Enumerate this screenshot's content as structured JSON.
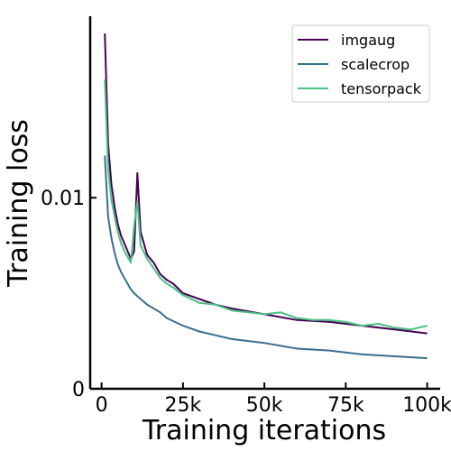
{
  "chart_data": {
    "type": "line",
    "xlabel": "Training iterations",
    "ylabel": "Training loss",
    "xlim": [
      -3500,
      104000
    ],
    "ylim": [
      0,
      0.0195
    ],
    "x_ticks": [
      0,
      25000,
      50000,
      75000,
      100000
    ],
    "x_tick_labels": [
      "0",
      "25k",
      "50k",
      "75k",
      "100k"
    ],
    "y_ticks": [
      0,
      0.01
    ],
    "y_tick_labels": [
      "0",
      "0.01"
    ],
    "grid": false,
    "legend_position": "top-right",
    "series": [
      {
        "name": "imgaug",
        "color": "#440154",
        "x": [
          1000,
          2000,
          3000,
          4000,
          5000,
          6000,
          7000,
          8000,
          9000,
          10000,
          11000,
          12000,
          14000,
          16000,
          18000,
          20000,
          22000,
          25000,
          30000,
          35000,
          40000,
          50000,
          60000,
          70000,
          80000,
          90000,
          100000
        ],
        "y": [
          0.0186,
          0.0128,
          0.0107,
          0.0095,
          0.0086,
          0.008,
          0.0076,
          0.0072,
          0.0068,
          0.0072,
          0.0113,
          0.0082,
          0.007,
          0.0066,
          0.006,
          0.0057,
          0.0055,
          0.005,
          0.0047,
          0.0044,
          0.0042,
          0.0039,
          0.0036,
          0.0035,
          0.0033,
          0.0031,
          0.0029
        ]
      },
      {
        "name": "scalecrop",
        "color": "#3b6e8f",
        "x": [
          1000,
          2000,
          3000,
          4000,
          5000,
          6000,
          7000,
          8000,
          9000,
          10000,
          12000,
          14000,
          16000,
          18000,
          20000,
          25000,
          30000,
          35000,
          40000,
          50000,
          60000,
          70000,
          80000,
          90000,
          100000
        ],
        "y": [
          0.0122,
          0.009,
          0.0079,
          0.0071,
          0.0065,
          0.0061,
          0.0058,
          0.0055,
          0.0052,
          0.005,
          0.0047,
          0.0044,
          0.0042,
          0.004,
          0.0037,
          0.0033,
          0.003,
          0.0028,
          0.0026,
          0.0024,
          0.0021,
          0.002,
          0.0018,
          0.0017,
          0.0016
        ]
      },
      {
        "name": "tensorpack",
        "color": "#4cc083",
        "x": [
          1000,
          2000,
          3000,
          4000,
          5000,
          6000,
          7000,
          8000,
          9000,
          10000,
          11000,
          12000,
          14000,
          16000,
          18000,
          20000,
          22000,
          25000,
          30000,
          35000,
          40000,
          45000,
          50000,
          55000,
          60000,
          65000,
          70000,
          75000,
          80000,
          85000,
          90000,
          95000,
          100000
        ],
        "y": [
          0.0162,
          0.0115,
          0.0099,
          0.009,
          0.0082,
          0.0076,
          0.0072,
          0.0069,
          0.0066,
          0.0085,
          0.0098,
          0.0075,
          0.0068,
          0.0063,
          0.0058,
          0.0055,
          0.0053,
          0.0049,
          0.0045,
          0.0044,
          0.0041,
          0.004,
          0.0039,
          0.004,
          0.0037,
          0.0036,
          0.0036,
          0.0035,
          0.0033,
          0.0034,
          0.0032,
          0.0031,
          0.0033
        ]
      }
    ]
  }
}
